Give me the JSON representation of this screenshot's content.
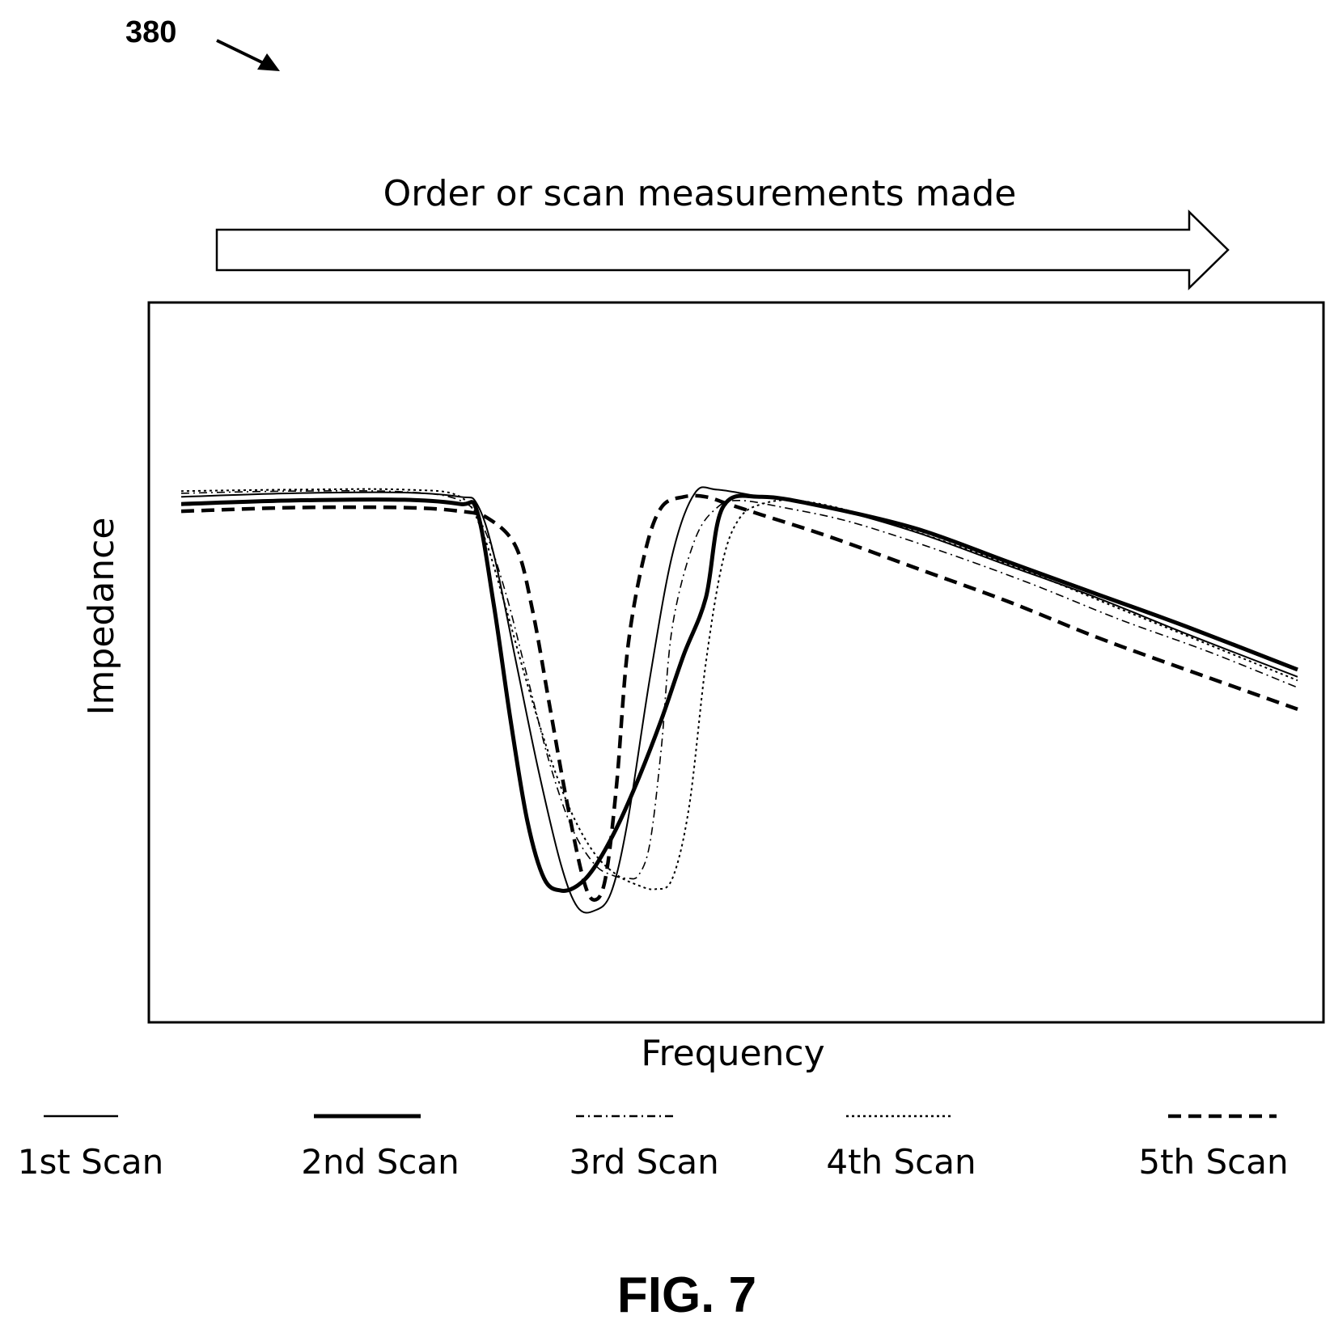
{
  "reference_numeral": "380",
  "arrow_caption": "Order or scan measurements made",
  "figure_label": "FIG. 7",
  "chart_data": {
    "type": "line",
    "xlabel": "Frequency",
    "ylabel": "Impedance",
    "xlim": [
      0,
      100
    ],
    "ylim": [
      0,
      100
    ],
    "grid": false,
    "legend_position": "bottom",
    "series": [
      {
        "name": "1st Scan",
        "style": "thin-solid",
        "color": "#000000",
        "x": [
          0,
          10,
          20,
          25,
          26.5,
          28,
          30,
          32,
          34,
          35.5,
          37,
          38.5,
          40,
          42,
          44,
          46,
          48,
          52,
          58,
          66,
          74,
          82,
          90,
          100
        ],
        "y": [
          73,
          73.5,
          73.6,
          73,
          72,
          65,
          50,
          35,
          22,
          16,
          15.5,
          18,
          28,
          48,
          65,
          73.5,
          74,
          73,
          71.5,
          68,
          63.5,
          59,
          54,
          48
        ]
      },
      {
        "name": "2nd Scan",
        "style": "thick-solid",
        "color": "#000000",
        "x": [
          0,
          10,
          20,
          25,
          26.5,
          28,
          29.5,
          31,
          32.5,
          34,
          35.5,
          37,
          39,
          41,
          43,
          45,
          47,
          48.5,
          52,
          58,
          66,
          74,
          82,
          90,
          100
        ],
        "y": [
          72,
          72.5,
          72.6,
          72,
          71,
          58,
          42,
          28,
          20,
          18.3,
          19,
          21.5,
          27,
          34,
          42,
          51,
          59,
          71.5,
          73,
          71.5,
          68.5,
          64,
          59.5,
          55,
          49
        ]
      },
      {
        "name": "3rd Scan",
        "style": "dash-dot",
        "color": "#000000",
        "x": [
          0,
          10,
          20,
          25,
          27,
          29,
          31,
          33,
          35,
          37,
          38.5,
          40,
          41,
          42,
          43,
          44,
          46,
          48,
          50,
          54,
          60,
          68,
          76,
          84,
          92,
          100
        ],
        "y": [
          73.5,
          73.8,
          73.7,
          72.5,
          69,
          60,
          48,
          36,
          27,
          22,
          20.5,
          20,
          20.5,
          25,
          38,
          55,
          67,
          71.5,
          72.5,
          71.5,
          69.5,
          65.5,
          61,
          56,
          51.5,
          46.5
        ]
      },
      {
        "name": "4th Scan",
        "style": "dotted",
        "color": "#000000",
        "x": [
          0,
          10,
          20,
          25,
          27,
          29,
          31,
          33,
          35,
          37,
          39,
          41,
          42.5,
          44,
          45.5,
          47,
          48.5,
          50,
          52,
          55,
          60,
          68,
          76,
          84,
          92,
          100
        ],
        "y": [
          73.8,
          74,
          74,
          73,
          68,
          58,
          47,
          37,
          29,
          23.5,
          20.5,
          19,
          18.5,
          20,
          30,
          50,
          64,
          70,
          72,
          72.5,
          71,
          67,
          62.5,
          57.5,
          52.5,
          47.5
        ]
      },
      {
        "name": "5th Scan",
        "style": "dashed",
        "color": "#000000",
        "x": [
          0,
          10,
          20,
          25,
          27.5,
          30,
          31.5,
          33,
          34.5,
          36,
          37,
          38,
          39,
          40,
          41.5,
          43,
          45,
          47,
          49,
          52,
          58,
          66,
          74,
          82,
          90,
          100
        ],
        "y": [
          71,
          71.5,
          71.5,
          71,
          70,
          66,
          57,
          44,
          31,
          20,
          17,
          20,
          33,
          52,
          65,
          71.5,
          73,
          73,
          72,
          70.5,
          67.5,
          63,
          58.5,
          53.5,
          49,
          43.5
        ]
      }
    ]
  }
}
